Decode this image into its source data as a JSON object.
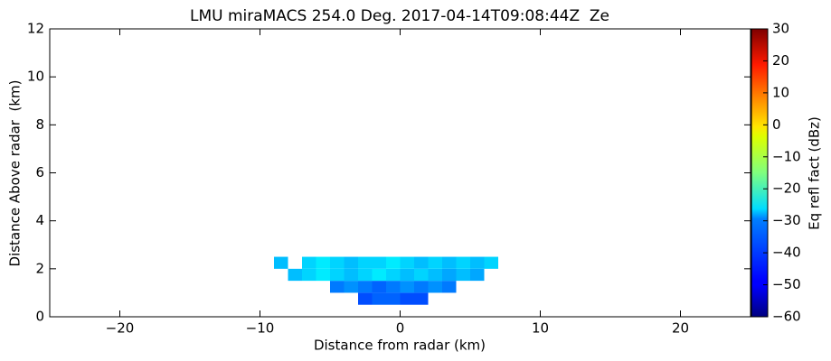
{
  "chart_data": {
    "type": "rhi",
    "title": "LMU miraMACS 254.0 Deg. 2017-04-14T09:08:44Z  Ze",
    "x_label": "Distance from radar (km)",
    "y_label": "Distance Above radar  (km)",
    "colorbar_label": "Eq refl fact (dBz)",
    "colormap": "jet",
    "xlim": [
      -25,
      25
    ],
    "ylim": [
      0,
      12
    ],
    "clim": [
      -60,
      30
    ],
    "xticks": [
      {
        "value": -20,
        "label": "−20"
      },
      {
        "value": -10,
        "label": "−10"
      },
      0,
      10,
      20
    ],
    "yticks": [
      0,
      2,
      4,
      6,
      8,
      10,
      12
    ],
    "cticks": [
      {
        "value": -60,
        "label": "−60"
      },
      {
        "value": -50,
        "label": "−50"
      },
      {
        "value": -40,
        "label": "−40"
      },
      {
        "value": -30,
        "label": "−30"
      },
      {
        "value": -20,
        "label": "−20"
      },
      {
        "value": -10,
        "label": "−10"
      },
      0,
      10,
      20,
      30
    ],
    "x_edges": [
      -9,
      -8,
      -7,
      -6,
      -5,
      -4,
      -3,
      -2,
      -1,
      0,
      1,
      2,
      3,
      4,
      5,
      6,
      7
    ],
    "y_edges": [
      0.5,
      1,
      1.5,
      2,
      2.5
    ],
    "values": [
      [
        null,
        null,
        null,
        null,
        null,
        null,
        -42,
        -40,
        -40,
        -42,
        -42,
        null,
        null,
        null,
        null,
        null
      ],
      [
        null,
        null,
        null,
        null,
        -38,
        -36,
        -38,
        -40,
        -38,
        -36,
        -38,
        -36,
        -38,
        null,
        null,
        null
      ],
      [
        null,
        -32,
        -30,
        -28,
        -30,
        -32,
        -30,
        -28,
        -30,
        -32,
        -30,
        -32,
        -34,
        -32,
        -34,
        null
      ],
      [
        -32,
        null,
        -30,
        -28,
        -30,
        -32,
        -30,
        -30,
        -28,
        -30,
        -32,
        -30,
        -32,
        -30,
        -32,
        -30
      ]
    ]
  }
}
